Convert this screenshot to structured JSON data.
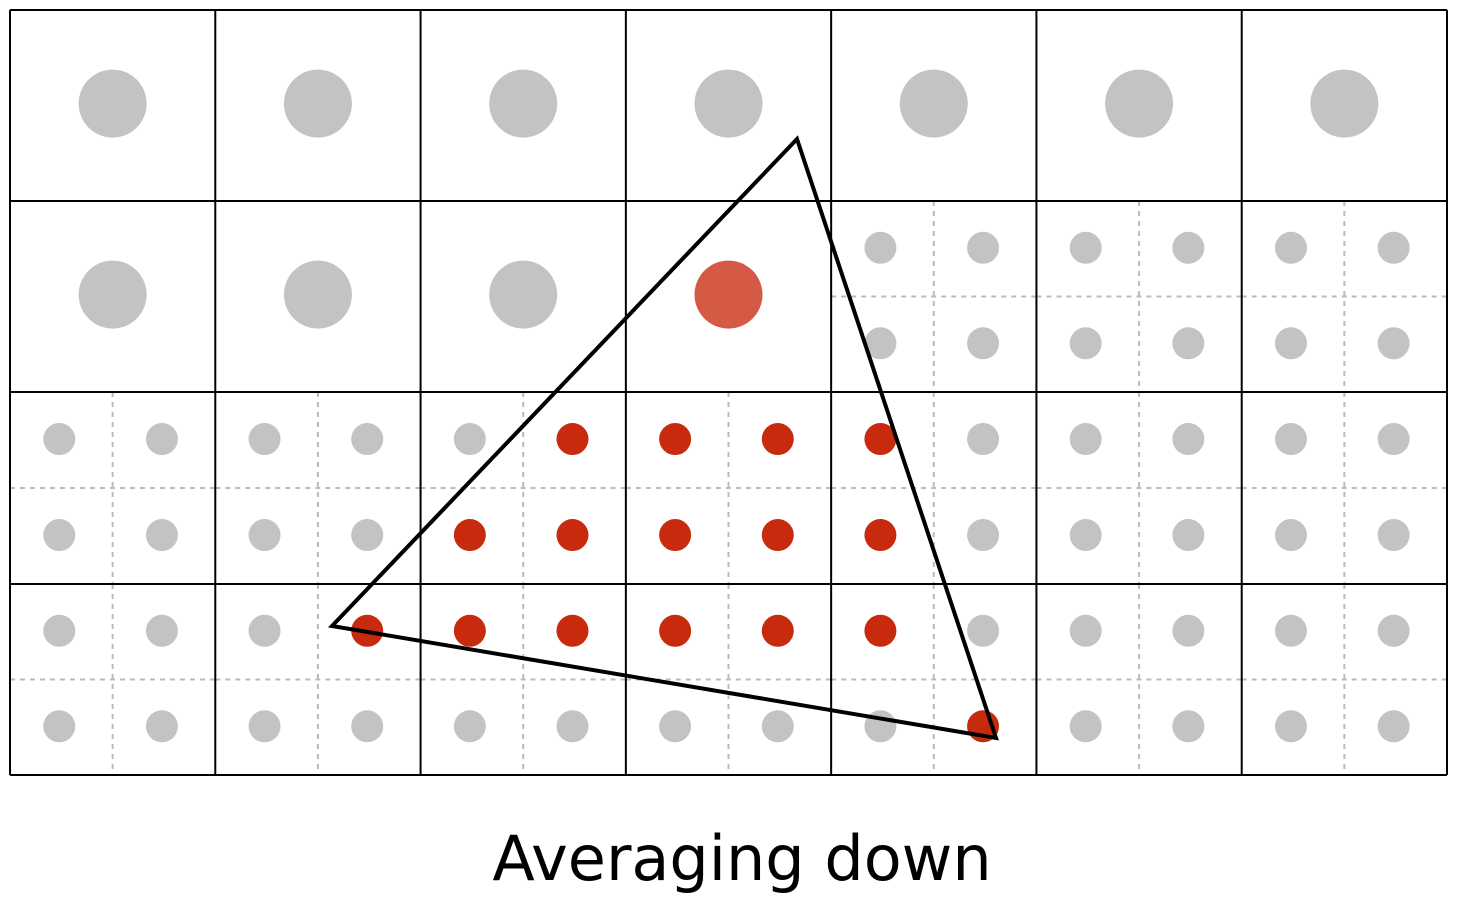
{
  "caption": "Averaging down"
}
